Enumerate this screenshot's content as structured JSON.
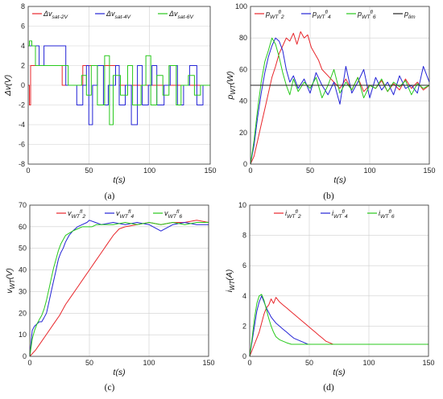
{
  "chart_data": [
    {
      "type": "line",
      "caption": "(a)",
      "xlabel": "t(s)",
      "ylabel": "Δv(V)",
      "xlim": [
        0,
        150
      ],
      "ylim": [
        -8,
        8
      ],
      "xticks": [
        0,
        50,
        100,
        150
      ],
      "yticks": [
        -8,
        -6,
        -4,
        -2,
        0,
        2,
        4,
        6,
        8
      ],
      "grid": true,
      "legend": "top",
      "series": [
        {
          "name": "Δv_sat-2V",
          "color": "#e8262b",
          "x": [
            0,
            1,
            1,
            2,
            2,
            3,
            3,
            28,
            28,
            45,
            45,
            75,
            75,
            100,
            100,
            150
          ],
          "y": [
            0,
            0,
            -2,
            -2,
            2,
            2,
            2,
            2,
            0,
            0,
            2,
            2,
            0,
            0,
            0,
            0
          ]
        },
        {
          "name": "Δv_sat-4V",
          "color": "#2323d6",
          "x": [
            0,
            2,
            2,
            9,
            9,
            13,
            13,
            31,
            31,
            40,
            40,
            45,
            45,
            48,
            48,
            50,
            50,
            53,
            53,
            57,
            57,
            62,
            62,
            66,
            66,
            72,
            72,
            75,
            75,
            80,
            80,
            85,
            85,
            90,
            90,
            94,
            94,
            99,
            99,
            102,
            102,
            106,
            106,
            112,
            112,
            117,
            117,
            123,
            123,
            128,
            128,
            133,
            133,
            139,
            139,
            144,
            144,
            150
          ],
          "y": [
            4,
            4,
            4,
            4,
            2,
            2,
            4,
            4,
            0,
            0,
            -2,
            -2,
            0,
            0,
            2,
            2,
            -4,
            -4,
            0,
            0,
            2,
            2,
            -2,
            -2,
            0,
            0,
            2,
            2,
            -2,
            -2,
            0,
            0,
            -4,
            -4,
            2,
            2,
            -2,
            -2,
            0,
            0,
            2,
            2,
            -2,
            -2,
            0,
            0,
            2,
            2,
            -2,
            -2,
            0,
            0,
            2,
            2,
            -2,
            -2,
            0,
            0
          ]
        },
        {
          "name": "Δv_sat-6V",
          "color": "#28c91c",
          "x": [
            0,
            1,
            1,
            3,
            3,
            6,
            6,
            33,
            33,
            44,
            44,
            48,
            48,
            52,
            52,
            57,
            57,
            63,
            63,
            67,
            67,
            70,
            70,
            76,
            76,
            82,
            82,
            86,
            86,
            93,
            93,
            97,
            97,
            101,
            101,
            106,
            106,
            111,
            111,
            116,
            116,
            122,
            122,
            126,
            126,
            132,
            132,
            137,
            137,
            142,
            142,
            150
          ],
          "y": [
            4,
            4,
            4.5,
            4.5,
            4,
            4,
            2,
            2,
            0,
            0,
            1,
            1,
            -1,
            -1,
            2,
            2,
            -2,
            -2,
            3,
            3,
            -4,
            -4,
            1,
            1,
            -1,
            -1,
            2,
            2,
            -2,
            -2,
            0,
            0,
            3,
            3,
            -2,
            -2,
            1,
            1,
            -1,
            -1,
            2,
            2,
            -2,
            -2,
            0,
            0,
            1,
            1,
            -1,
            -1,
            0,
            0
          ]
        }
      ]
    },
    {
      "type": "line",
      "caption": "(b)",
      "xlabel": "t(s)",
      "ylabel": "p_WT(W)",
      "xlim": [
        0,
        150
      ],
      "ylim": [
        0,
        100
      ],
      "xticks": [
        0,
        50,
        100,
        150
      ],
      "yticks": [
        0,
        20,
        40,
        60,
        80,
        100
      ],
      "grid": true,
      "legend": "top",
      "series": [
        {
          "name": "p_WT^fl_2",
          "color": "#e8262b",
          "x": [
            0,
            3,
            6,
            9,
            12,
            15,
            18,
            21,
            24,
            27,
            30,
            33,
            36,
            39,
            42,
            45,
            48,
            51,
            54,
            57,
            60,
            65,
            70,
            75,
            80,
            85,
            90,
            95,
            100,
            105,
            110,
            115,
            120,
            125,
            130,
            135,
            140,
            145,
            150
          ],
          "y": [
            0,
            5,
            15,
            25,
            35,
            45,
            55,
            62,
            70,
            75,
            80,
            78,
            83,
            76,
            84,
            80,
            82,
            74,
            70,
            66,
            60,
            56,
            52,
            48,
            54,
            47,
            55,
            46,
            50,
            48,
            53,
            46,
            51,
            47,
            54,
            48,
            52,
            47,
            50
          ]
        },
        {
          "name": "p_WT^fl_4",
          "color": "#2323d6",
          "x": [
            0,
            3,
            6,
            9,
            12,
            15,
            18,
            21,
            24,
            27,
            30,
            33,
            36,
            40,
            45,
            50,
            55,
            60,
            65,
            70,
            75,
            80,
            85,
            90,
            95,
            100,
            105,
            110,
            115,
            120,
            125,
            130,
            135,
            140,
            145,
            150
          ],
          "y": [
            0,
            12,
            30,
            45,
            58,
            68,
            75,
            80,
            78,
            72,
            60,
            52,
            56,
            48,
            54,
            45,
            58,
            50,
            44,
            52,
            38,
            62,
            45,
            52,
            60,
            42,
            55,
            47,
            52,
            44,
            56,
            48,
            50,
            45,
            62,
            52
          ]
        },
        {
          "name": "p_WT^fl_6",
          "color": "#28c91c",
          "x": [
            0,
            3,
            6,
            9,
            12,
            15,
            18,
            21,
            24,
            27,
            30,
            33,
            36,
            40,
            45,
            50,
            55,
            60,
            65,
            70,
            75,
            80,
            85,
            90,
            95,
            100,
            105,
            110,
            115,
            120,
            125,
            130,
            135,
            140,
            145,
            150
          ],
          "y": [
            0,
            15,
            35,
            52,
            65,
            72,
            80,
            76,
            68,
            58,
            50,
            44,
            54,
            46,
            52,
            48,
            55,
            42,
            50,
            60,
            45,
            52,
            47,
            55,
            42,
            50,
            48,
            54,
            46,
            52,
            49,
            53,
            44,
            51,
            48,
            50
          ]
        },
        {
          "name": "p_lim",
          "color": "#222222",
          "x": [
            0,
            150
          ],
          "y": [
            50,
            50
          ]
        }
      ]
    },
    {
      "type": "line",
      "caption": "(c)",
      "xlabel": "t(s)",
      "ylabel": "v_WT(V)",
      "xlim": [
        0,
        150
      ],
      "ylim": [
        0,
        70
      ],
      "xticks": [
        0,
        50,
        100,
        150
      ],
      "yticks": [
        0,
        10,
        20,
        30,
        40,
        50,
        60,
        70
      ],
      "grid": true,
      "legend": "top",
      "series": [
        {
          "name": "v_WT^fl_2",
          "color": "#e8262b",
          "x": [
            0,
            5,
            10,
            15,
            20,
            25,
            30,
            35,
            40,
            45,
            50,
            55,
            60,
            65,
            70,
            75,
            80,
            90,
            100,
            110,
            120,
            130,
            140,
            150
          ],
          "y": [
            0,
            3,
            7,
            11,
            15,
            19,
            24,
            28,
            32,
            36,
            40,
            44,
            48,
            52,
            56,
            59,
            60,
            61,
            62,
            61,
            62,
            62,
            63,
            62
          ]
        },
        {
          "name": "v_WT^fl_4",
          "color": "#2323d6",
          "x": [
            0,
            2,
            4,
            6,
            8,
            10,
            12,
            14,
            16,
            18,
            20,
            22,
            24,
            26,
            28,
            30,
            33,
            36,
            40,
            44,
            48,
            50,
            55,
            60,
            70,
            80,
            90,
            100,
            110,
            120,
            130,
            140,
            150
          ],
          "y": [
            0,
            12,
            14,
            15,
            16,
            16,
            18,
            20,
            25,
            30,
            35,
            40,
            45,
            48,
            50,
            53,
            56,
            58,
            60,
            61,
            62,
            63,
            62,
            61,
            62,
            61,
            62,
            61,
            58,
            61,
            62,
            61,
            61
          ]
        },
        {
          "name": "v_WT^fl_6",
          "color": "#28c91c",
          "x": [
            0,
            2,
            4,
            6,
            8,
            10,
            12,
            14,
            16,
            18,
            20,
            22,
            24,
            26,
            28,
            30,
            33,
            36,
            40,
            44,
            48,
            52,
            56,
            60,
            65,
            70,
            80,
            90,
            100,
            110,
            120,
            130,
            140,
            150
          ],
          "y": [
            0,
            8,
            12,
            15,
            17,
            19,
            22,
            26,
            31,
            36,
            41,
            45,
            49,
            52,
            54,
            56,
            57,
            58,
            59,
            60,
            60,
            60,
            61,
            61,
            61,
            61,
            62,
            61,
            62,
            61,
            62,
            61,
            62,
            62
          ]
        }
      ]
    },
    {
      "type": "line",
      "caption": "(d)",
      "xlabel": "t(s)",
      "ylabel": "i_WT(A)",
      "xlim": [
        0,
        150
      ],
      "ylim": [
        0,
        10
      ],
      "xticks": [
        0,
        50,
        100,
        150
      ],
      "yticks": [
        0,
        2,
        4,
        6,
        8,
        10
      ],
      "grid": true,
      "legend": "top",
      "series": [
        {
          "name": "i_WT^fl_2",
          "color": "#e8262b",
          "x": [
            0,
            2,
            4,
            6,
            8,
            10,
            12,
            14,
            16,
            18,
            20,
            22,
            25,
            28,
            31,
            34,
            37,
            40,
            43,
            46,
            49,
            52,
            55,
            58,
            61,
            64,
            67,
            70,
            75,
            80,
            90,
            100,
            110,
            120,
            130,
            140,
            150
          ],
          "y": [
            0,
            0.4,
            0.8,
            1.2,
            1.6,
            2.2,
            2.8,
            3.2,
            3.4,
            3.8,
            3.5,
            3.9,
            3.6,
            3.4,
            3.2,
            3,
            2.8,
            2.6,
            2.4,
            2.2,
            2.0,
            1.8,
            1.6,
            1.4,
            1.2,
            1.0,
            0.9,
            0.8,
            0.8,
            0.8,
            0.8,
            0.8,
            0.8,
            0.8,
            0.8,
            0.8,
            0.8
          ]
        },
        {
          "name": "i_WT^fl_4",
          "color": "#2323d6",
          "x": [
            0,
            2,
            4,
            6,
            8,
            10,
            12,
            14,
            16,
            18,
            20,
            22,
            25,
            28,
            31,
            34,
            37,
            40,
            43,
            46,
            49,
            52,
            55,
            60,
            70,
            80,
            90,
            100,
            110,
            120,
            130,
            140,
            150
          ],
          "y": [
            0,
            1,
            2,
            3,
            3.6,
            4,
            3.6,
            3.2,
            2.9,
            2.6,
            2.4,
            2.2,
            2.0,
            1.8,
            1.6,
            1.4,
            1.2,
            1.1,
            1.0,
            0.9,
            0.8,
            0.8,
            0.8,
            0.8,
            0.8,
            0.8,
            0.8,
            0.8,
            0.8,
            0.8,
            0.8,
            0.8,
            0.8
          ]
        },
        {
          "name": "i_WT^fl_6",
          "color": "#28c91c",
          "x": [
            0,
            2,
            4,
            6,
            8,
            10,
            12,
            14,
            16,
            18,
            20,
            22,
            25,
            28,
            31,
            35,
            40,
            50,
            60,
            70,
            80,
            90,
            100,
            110,
            120,
            130,
            140,
            150
          ],
          "y": [
            0,
            1.2,
            2.5,
            3.5,
            4,
            4.1,
            3.7,
            3.1,
            2.5,
            2,
            1.6,
            1.3,
            1.1,
            1.0,
            0.9,
            0.8,
            0.8,
            0.8,
            0.8,
            0.8,
            0.8,
            0.8,
            0.8,
            0.8,
            0.8,
            0.8,
            0.8,
            0.8
          ]
        }
      ]
    }
  ]
}
